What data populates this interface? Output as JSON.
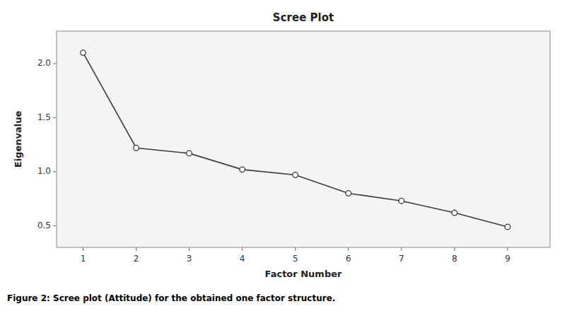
{
  "chart_data": {
    "type": "line",
    "title": "Scree Plot",
    "xlabel": "Factor Number",
    "ylabel": "Eigenvalue",
    "caption": "Figure 2: Scree plot (Attitude) for the obtained one factor structure.",
    "x": [
      1,
      2,
      3,
      4,
      5,
      6,
      7,
      8,
      9
    ],
    "values": [
      2.1,
      1.22,
      1.17,
      1.02,
      0.97,
      0.8,
      0.73,
      0.62,
      0.49
    ],
    "xlim": [
      0.5,
      9.8
    ],
    "ylim": [
      0.3,
      2.3
    ],
    "xticks": [
      1,
      2,
      3,
      4,
      5,
      6,
      7,
      8,
      9
    ],
    "yticks": [
      0.5,
      {
        "value": 1,
        "label": "1.0"
      },
      1.5,
      {
        "value": 2,
        "label": "2.0"
      }
    ],
    "color": "#3c3c3c",
    "marker": "circle",
    "grid": false
  }
}
